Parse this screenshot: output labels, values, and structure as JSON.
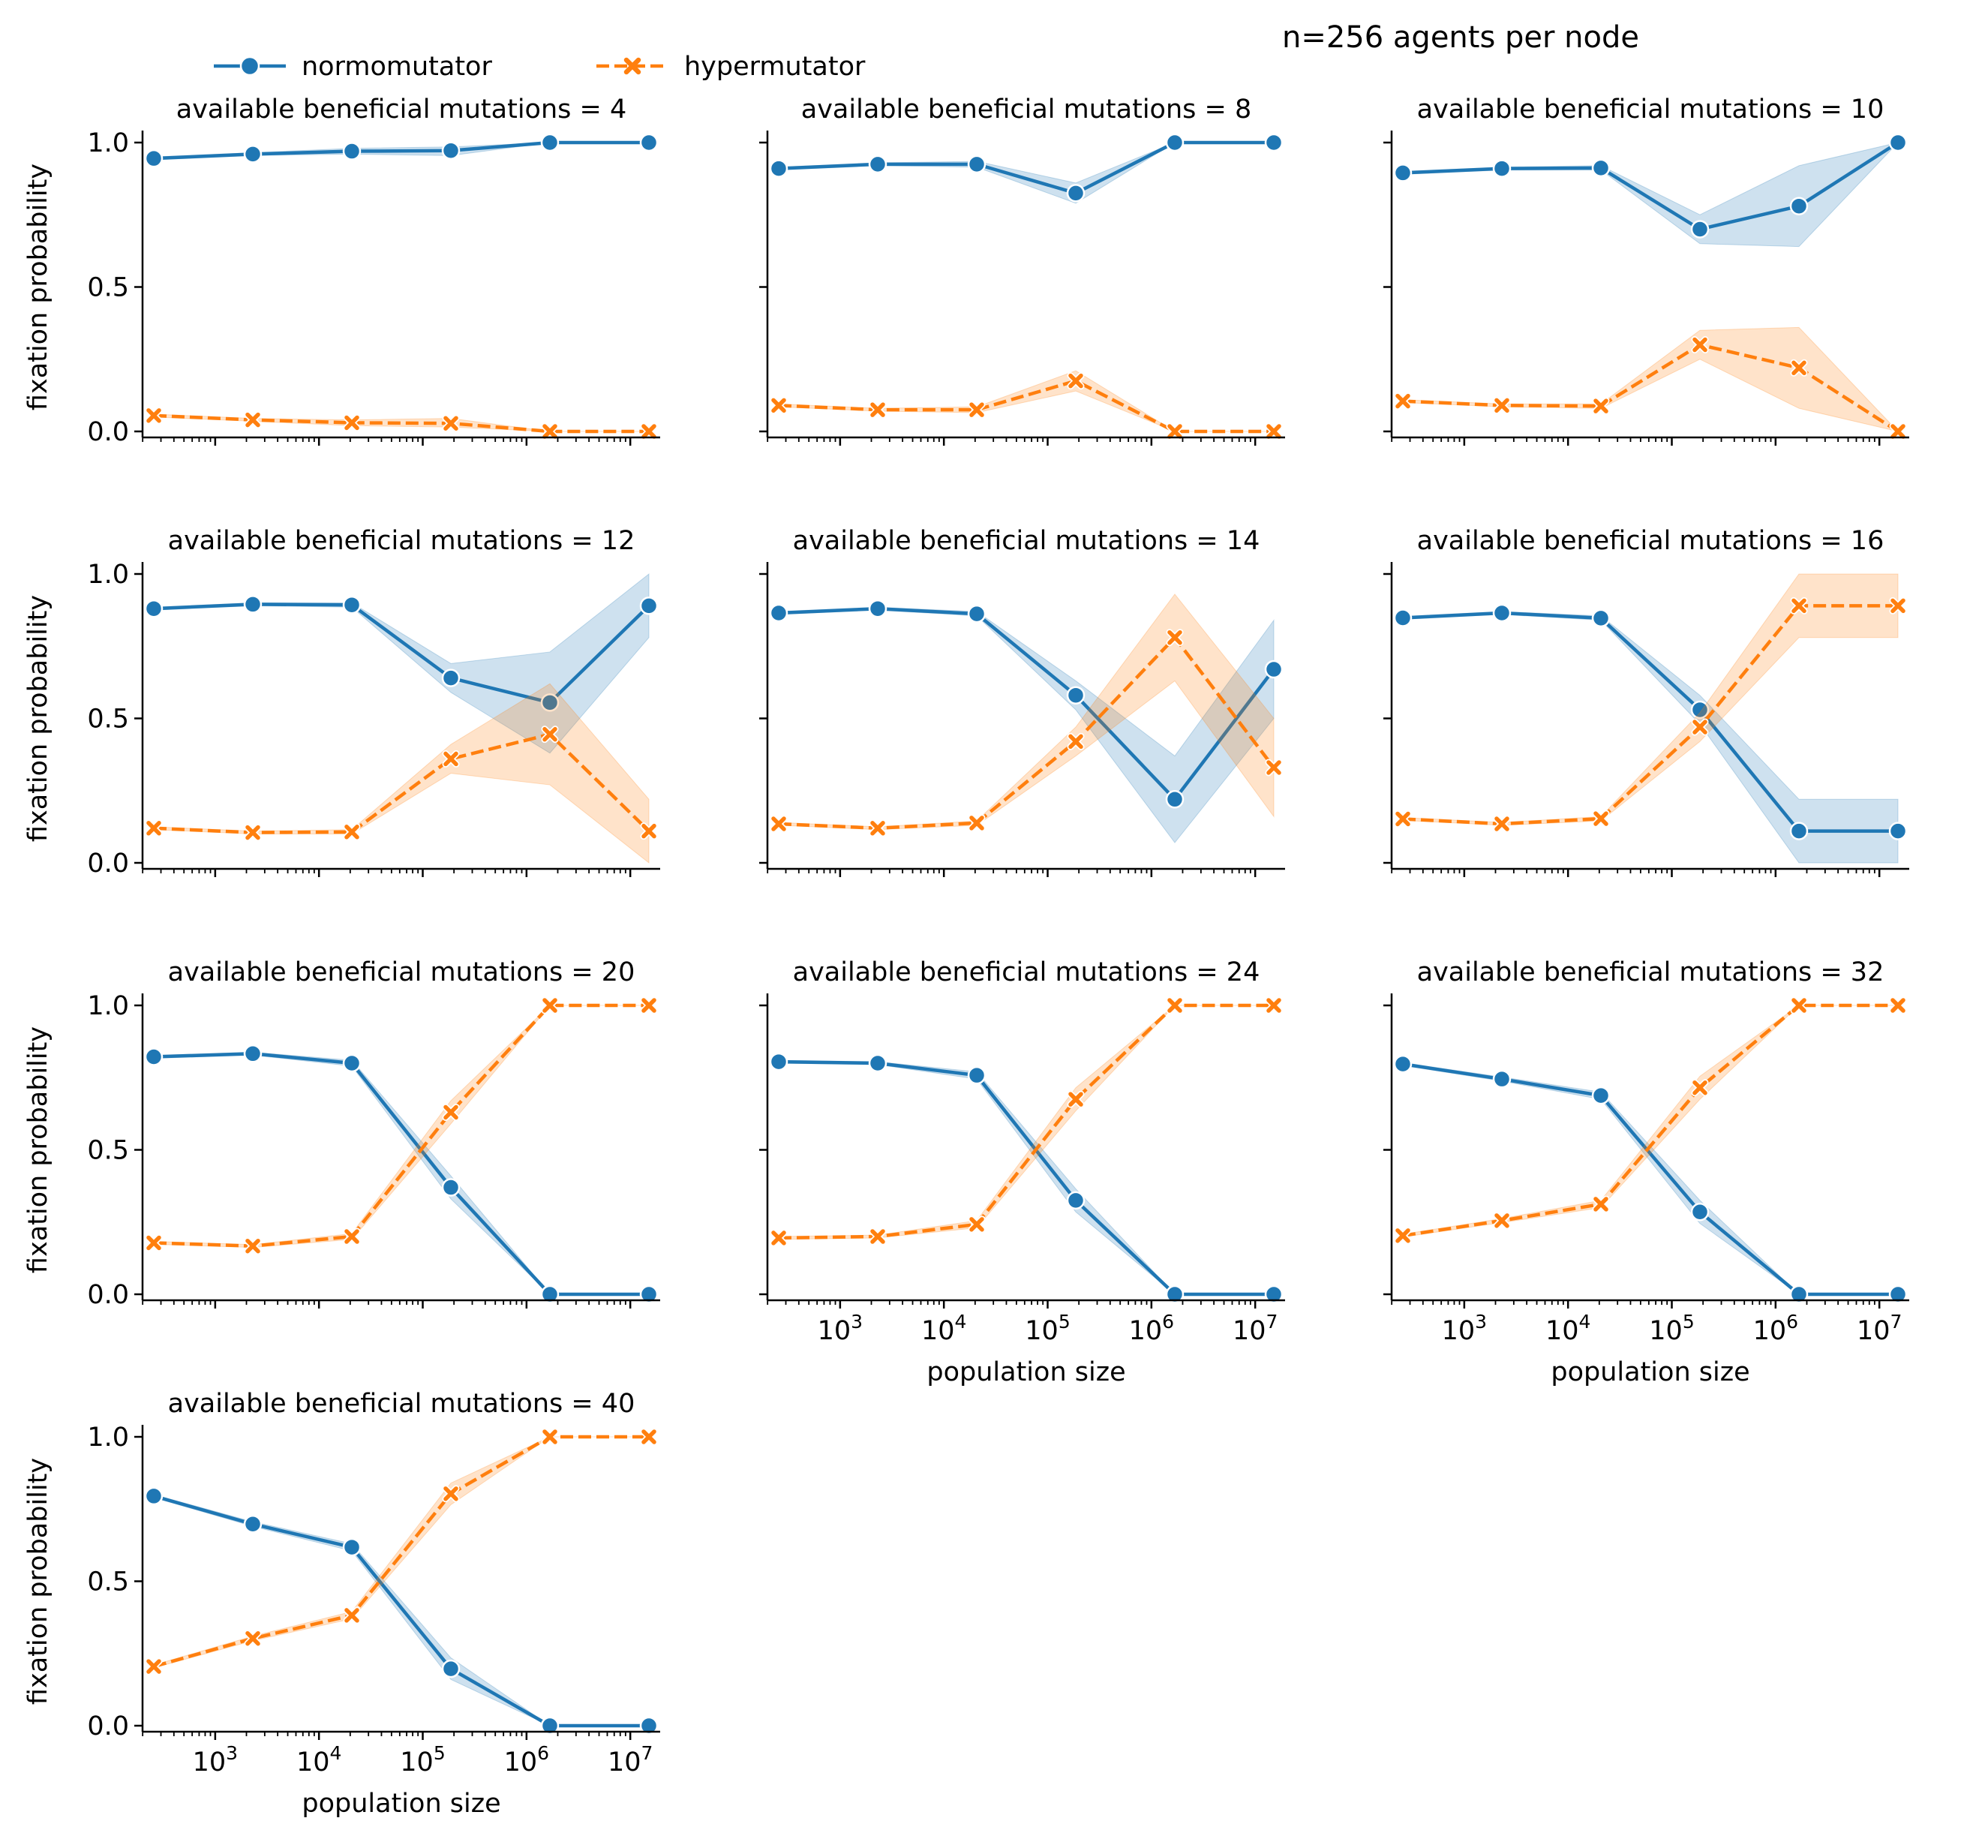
{
  "figure": {
    "suptitle": "n=256 agents per node",
    "legend": {
      "placement": "top-left",
      "entries": [
        {
          "label": "normomutator",
          "color": "#1f77b4",
          "marker": "circle",
          "linestyle": "solid"
        },
        {
          "label": "hypermutator",
          "color": "#ff7f0e",
          "marker": "x",
          "linestyle": "dashed"
        }
      ]
    },
    "y_tick_labels": [
      "0.0",
      "0.5",
      "1.0"
    ],
    "x_tick_labels": [
      {
        "base": "10",
        "exp": "3"
      },
      {
        "base": "10",
        "exp": "4"
      },
      {
        "base": "10",
        "exp": "5"
      },
      {
        "base": "10",
        "exp": "6"
      },
      {
        "base": "10",
        "exp": "7"
      }
    ]
  },
  "chart_data": {
    "type": "line",
    "x_scale": "log",
    "xlabel": "population size",
    "ylabel": "fixation probability",
    "ylim": [
      0,
      1
    ],
    "x": [
      256,
      2304,
      20736,
      186624,
      1679616,
      15116544
    ],
    "grid": false,
    "panels": [
      {
        "title": "available beneficial mutations = 4",
        "normomutator": {
          "values": [
            0.945,
            0.96,
            0.97,
            0.972,
            1.0,
            1.0
          ],
          "lo": [
            0.94,
            0.955,
            0.96,
            0.955,
            1.0,
            1.0
          ],
          "hi": [
            0.95,
            0.965,
            0.98,
            0.985,
            1.0,
            1.0
          ]
        },
        "hypermutator": {
          "values": [
            0.055,
            0.04,
            0.03,
            0.028,
            0.0,
            0.0
          ],
          "lo": [
            0.05,
            0.035,
            0.02,
            0.015,
            0.0,
            0.0
          ],
          "hi": [
            0.06,
            0.045,
            0.04,
            0.045,
            0.0,
            0.0
          ]
        }
      },
      {
        "title": "available beneficial mutations = 8",
        "normomutator": {
          "values": [
            0.91,
            0.925,
            0.925,
            0.825,
            1.0,
            1.0
          ],
          "lo": [
            0.905,
            0.92,
            0.915,
            0.79,
            1.0,
            1.0
          ],
          "hi": [
            0.915,
            0.93,
            0.935,
            0.86,
            1.0,
            1.0
          ]
        },
        "hypermutator": {
          "values": [
            0.09,
            0.075,
            0.075,
            0.175,
            0.0,
            0.0
          ],
          "lo": [
            0.085,
            0.07,
            0.065,
            0.14,
            0.0,
            0.0
          ],
          "hi": [
            0.095,
            0.08,
            0.085,
            0.21,
            0.0,
            0.0
          ]
        }
      },
      {
        "title": "available beneficial mutations = 10",
        "normomutator": {
          "values": [
            0.895,
            0.91,
            0.912,
            0.7,
            0.78,
            1.0
          ],
          "lo": [
            0.89,
            0.905,
            0.905,
            0.65,
            0.64,
            1.0
          ],
          "hi": [
            0.9,
            0.915,
            0.92,
            0.75,
            0.92,
            1.0
          ]
        },
        "hypermutator": {
          "values": [
            0.105,
            0.09,
            0.088,
            0.3,
            0.22,
            0.0
          ],
          "lo": [
            0.1,
            0.085,
            0.08,
            0.25,
            0.08,
            0.0
          ],
          "hi": [
            0.11,
            0.095,
            0.095,
            0.35,
            0.36,
            0.0
          ]
        }
      },
      {
        "title": "available beneficial mutations = 12",
        "normomutator": {
          "values": [
            0.88,
            0.895,
            0.893,
            0.64,
            0.555,
            0.89
          ],
          "lo": [
            0.875,
            0.89,
            0.885,
            0.59,
            0.38,
            0.78
          ],
          "hi": [
            0.885,
            0.9,
            0.9,
            0.69,
            0.73,
            1.0
          ]
        },
        "hypermutator": {
          "values": [
            0.12,
            0.105,
            0.107,
            0.36,
            0.445,
            0.11
          ],
          "lo": [
            0.115,
            0.1,
            0.1,
            0.31,
            0.27,
            0.0
          ],
          "hi": [
            0.125,
            0.11,
            0.115,
            0.41,
            0.62,
            0.22
          ]
        }
      },
      {
        "title": "available beneficial mutations = 14",
        "normomutator": {
          "values": [
            0.865,
            0.88,
            0.862,
            0.58,
            0.22,
            0.67
          ],
          "lo": [
            0.86,
            0.875,
            0.855,
            0.53,
            0.07,
            0.5
          ],
          "hi": [
            0.87,
            0.885,
            0.87,
            0.63,
            0.37,
            0.84
          ]
        },
        "hypermutator": {
          "values": [
            0.135,
            0.12,
            0.138,
            0.42,
            0.78,
            0.33
          ],
          "lo": [
            0.13,
            0.115,
            0.13,
            0.37,
            0.63,
            0.16
          ],
          "hi": [
            0.14,
            0.125,
            0.145,
            0.47,
            0.93,
            0.5
          ]
        }
      },
      {
        "title": "available beneficial mutations = 16",
        "normomutator": {
          "values": [
            0.848,
            0.865,
            0.847,
            0.53,
            0.11,
            0.11
          ],
          "lo": [
            0.843,
            0.86,
            0.84,
            0.48,
            0.0,
            0.0
          ],
          "hi": [
            0.853,
            0.87,
            0.855,
            0.58,
            0.22,
            0.22
          ]
        },
        "hypermutator": {
          "values": [
            0.152,
            0.135,
            0.153,
            0.47,
            0.89,
            0.89
          ],
          "lo": [
            0.147,
            0.13,
            0.145,
            0.42,
            0.78,
            0.78
          ],
          "hi": [
            0.157,
            0.14,
            0.16,
            0.52,
            1.0,
            1.0
          ]
        }
      },
      {
        "title": "available beneficial mutations = 20",
        "normomutator": {
          "values": [
            0.822,
            0.833,
            0.8,
            0.37,
            0.0,
            0.0
          ],
          "lo": [
            0.817,
            0.828,
            0.79,
            0.33,
            0.0,
            0.0
          ],
          "hi": [
            0.827,
            0.838,
            0.81,
            0.41,
            0.0,
            0.0
          ]
        },
        "hypermutator": {
          "values": [
            0.178,
            0.167,
            0.2,
            0.63,
            1.0,
            1.0
          ],
          "lo": [
            0.173,
            0.162,
            0.19,
            0.59,
            1.0,
            1.0
          ],
          "hi": [
            0.183,
            0.172,
            0.21,
            0.67,
            1.0,
            1.0
          ]
        }
      },
      {
        "title": "available beneficial mutations = 24",
        "normomutator": {
          "values": [
            0.805,
            0.8,
            0.758,
            0.325,
            0.0,
            0.0
          ],
          "lo": [
            0.8,
            0.795,
            0.745,
            0.285,
            0.0,
            0.0
          ],
          "hi": [
            0.81,
            0.805,
            0.77,
            0.365,
            0.0,
            0.0
          ]
        },
        "hypermutator": {
          "values": [
            0.195,
            0.2,
            0.242,
            0.675,
            1.0,
            1.0
          ],
          "lo": [
            0.19,
            0.195,
            0.23,
            0.635,
            1.0,
            1.0
          ],
          "hi": [
            0.2,
            0.205,
            0.255,
            0.715,
            1.0,
            1.0
          ]
        }
      },
      {
        "title": "available beneficial mutations = 32",
        "normomutator": {
          "values": [
            0.797,
            0.745,
            0.688,
            0.285,
            0.0,
            0.0
          ],
          "lo": [
            0.792,
            0.738,
            0.675,
            0.245,
            0.0,
            0.0
          ],
          "hi": [
            0.802,
            0.752,
            0.7,
            0.325,
            0.0,
            0.0
          ]
        },
        "hypermutator": {
          "values": [
            0.203,
            0.255,
            0.312,
            0.715,
            1.0,
            1.0
          ],
          "lo": [
            0.198,
            0.248,
            0.3,
            0.675,
            1.0,
            1.0
          ],
          "hi": [
            0.208,
            0.262,
            0.325,
            0.755,
            1.0,
            1.0
          ]
        }
      },
      {
        "title": "available beneficial mutations = 40",
        "normomutator": {
          "values": [
            0.795,
            0.698,
            0.618,
            0.197,
            0.0,
            0.0
          ],
          "lo": [
            0.79,
            0.69,
            0.605,
            0.16,
            0.0,
            0.0
          ],
          "hi": [
            0.8,
            0.706,
            0.63,
            0.235,
            0.0,
            0.0
          ]
        },
        "hypermutator": {
          "values": [
            0.205,
            0.302,
            0.382,
            0.803,
            1.0,
            1.0
          ],
          "lo": [
            0.2,
            0.294,
            0.37,
            0.765,
            1.0,
            1.0
          ],
          "hi": [
            0.21,
            0.31,
            0.395,
            0.84,
            1.0,
            1.0
          ]
        }
      }
    ]
  }
}
